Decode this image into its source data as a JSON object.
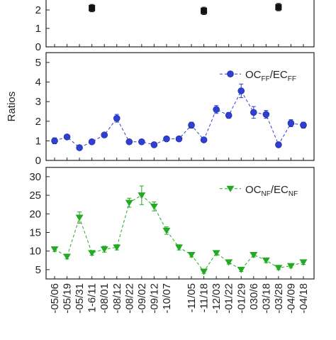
{
  "chart_data": [
    {
      "type": "line",
      "ylim": [
        0,
        2.7
      ],
      "yticks": [
        0,
        1,
        2
      ],
      "marker": "square",
      "color": "#111111",
      "values": [
        null,
        null,
        null,
        2.1,
        null,
        null,
        null,
        null,
        null,
        null,
        null,
        null,
        1.95,
        null,
        null,
        null,
        null,
        null,
        2.15,
        null,
        null
      ],
      "errors": [
        null,
        null,
        null,
        0.2,
        null,
        null,
        null,
        null,
        null,
        null,
        null,
        null,
        0.2,
        null,
        null,
        null,
        null,
        null,
        0.2,
        null,
        null
      ]
    },
    {
      "type": "line",
      "ylim": [
        0,
        5.5
      ],
      "yticks": [
        0,
        1,
        2,
        3,
        4,
        5
      ],
      "ylabel": "Ratios",
      "marker": "circle",
      "color": "#2f3fd0",
      "legend": "upper right",
      "name_parts": [
        {
          "text": "OC"
        },
        {
          "text": "FF",
          "sub": true
        },
        {
          "text": "/EC"
        },
        {
          "text": "FF",
          "sub": true
        }
      ],
      "values": [
        1.0,
        1.2,
        0.65,
        0.95,
        1.3,
        2.15,
        0.95,
        0.95,
        0.8,
        1.1,
        1.1,
        1.8,
        1.05,
        2.6,
        2.3,
        3.55,
        2.45,
        2.35,
        0.8,
        1.9,
        1.8
      ],
      "errors": [
        0.15,
        0.1,
        0.08,
        0.1,
        0.1,
        0.2,
        0.1,
        0.1,
        0.1,
        0.12,
        0.1,
        0.15,
        0.1,
        0.2,
        0.15,
        0.35,
        0.3,
        0.2,
        0.1,
        0.18,
        0.15
      ]
    },
    {
      "type": "line",
      "ylim": [
        2.5,
        32.5
      ],
      "yticks": [
        5,
        10,
        15,
        20,
        25,
        30
      ],
      "marker": "triangle",
      "color": "#22aa22",
      "legend": "upper right",
      "name_parts": [
        {
          "text": "OC"
        },
        {
          "text": "NF",
          "sub": true
        },
        {
          "text": "/EC"
        },
        {
          "text": "NF",
          "sub": true
        }
      ],
      "categories": [
        "-05/06",
        "-05/19",
        "-05/31",
        "1-6/11",
        "-08/01",
        "-08/12",
        "-08/22",
        "-09/02",
        "-09/12",
        "-10/07",
        null,
        "-11/05",
        "-11/18",
        "-12/03",
        "-01/22",
        "-01/29",
        "030/6",
        "-03/18",
        "-03/28",
        "-04/09",
        "-04/18"
      ],
      "values": [
        10.5,
        8.5,
        19,
        9.5,
        10.5,
        11,
        23,
        25,
        22,
        15.5,
        11,
        9,
        4.5,
        9.5,
        7,
        5,
        9,
        7.5,
        5.5,
        6,
        7
      ],
      "errors": [
        0.6,
        0.6,
        1.5,
        0.6,
        0.8,
        0.7,
        1.2,
        2.5,
        1.2,
        1.0,
        0.7,
        0.6,
        0.5,
        0.6,
        0.5,
        0.5,
        0.6,
        0.6,
        0.5,
        0.5,
        0.6
      ]
    }
  ]
}
